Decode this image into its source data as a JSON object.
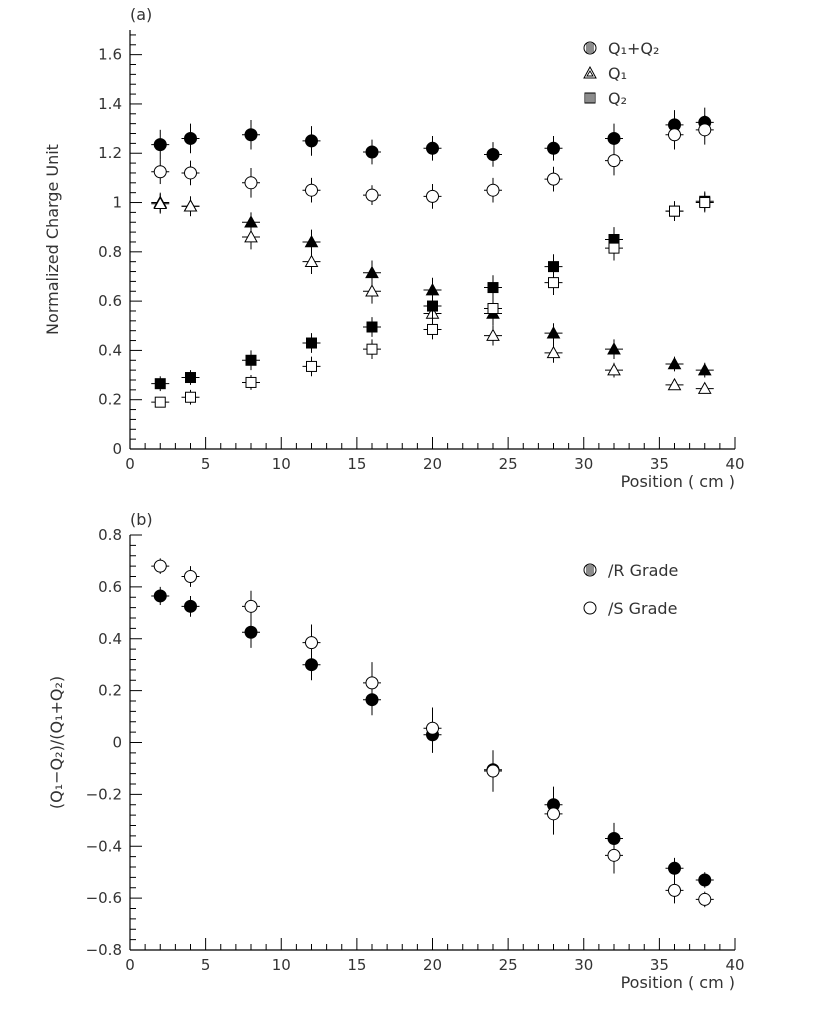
{
  "chart_data": [
    {
      "type": "scatter",
      "panel_label": "(a)",
      "xlabel": "Position ( cm )",
      "ylabel": "Normalized Charge Unit",
      "xlim": [
        0,
        40
      ],
      "ylim": [
        0,
        1.7
      ],
      "x_ticks": [
        0,
        5,
        10,
        15,
        20,
        25,
        30,
        35,
        40
      ],
      "y_ticks": [
        0,
        0.2,
        0.4,
        0.6,
        0.8,
        1,
        1.2,
        1.4,
        1.6
      ],
      "y_tick_labels": [
        "0",
        "0.2",
        "0.4",
        "0.6",
        "0.8",
        "1",
        "1.2",
        "1.4",
        "1.6"
      ],
      "x": [
        2,
        4,
        8,
        12,
        16,
        20,
        24,
        28,
        32,
        36,
        38
      ],
      "legend_position": "top-right",
      "legend": [
        {
          "label": "Q₁+Q₂",
          "marker": "circle"
        },
        {
          "label": "Q₁",
          "marker": "triangle"
        },
        {
          "label": "Q₂",
          "marker": "square"
        }
      ],
      "series": [
        {
          "marker": "circle",
          "filled": true,
          "values": [
            1.235,
            1.26,
            1.275,
            1.25,
            1.205,
            1.22,
            1.195,
            1.22,
            1.26,
            1.315,
            1.325
          ],
          "errors": [
            0.06,
            0.06,
            0.06,
            0.06,
            0.05,
            0.05,
            0.05,
            0.05,
            0.06,
            0.06,
            0.06
          ]
        },
        {
          "marker": "circle",
          "filled": false,
          "values": [
            1.125,
            1.12,
            1.08,
            1.05,
            1.03,
            1.025,
            1.05,
            1.095,
            1.17,
            1.275,
            1.295
          ],
          "errors": [
            0.05,
            0.05,
            0.06,
            0.05,
            0.04,
            0.05,
            0.05,
            0.05,
            0.06,
            0.06,
            0.06
          ]
        },
        {
          "marker": "triangle",
          "filled": true,
          "values": [
            1.0,
            0.985,
            0.92,
            0.84,
            0.715,
            0.645,
            0.55,
            0.47,
            0.405,
            0.345,
            0.32
          ],
          "errors": [
            0.04,
            0.04,
            0.04,
            0.05,
            0.05,
            0.05,
            0.05,
            0.04,
            0.04,
            0.03,
            0.03
          ]
        },
        {
          "marker": "triangle",
          "filled": false,
          "values": [
            0.995,
            0.985,
            0.86,
            0.76,
            0.64,
            0.55,
            0.46,
            0.39,
            0.32,
            0.26,
            0.245
          ],
          "errors": [
            0.04,
            0.04,
            0.05,
            0.05,
            0.05,
            0.04,
            0.04,
            0.04,
            0.03,
            0.02,
            0.02
          ]
        },
        {
          "marker": "square",
          "filled": true,
          "values": [
            0.265,
            0.29,
            0.36,
            0.43,
            0.495,
            0.58,
            0.655,
            0.74,
            0.85,
            0.965,
            1.005
          ],
          "errors": [
            0.03,
            0.03,
            0.04,
            0.04,
            0.04,
            0.05,
            0.05,
            0.05,
            0.05,
            0.04,
            0.04
          ]
        },
        {
          "marker": "square",
          "filled": false,
          "values": [
            0.19,
            0.21,
            0.27,
            0.335,
            0.405,
            0.485,
            0.57,
            0.675,
            0.815,
            0.965,
            1.0
          ],
          "errors": [
            0.02,
            0.03,
            0.03,
            0.04,
            0.04,
            0.04,
            0.05,
            0.05,
            0.05,
            0.04,
            0.04
          ]
        }
      ]
    },
    {
      "type": "scatter",
      "panel_label": "(b)",
      "xlabel": "Position ( cm )",
      "ylabel": "(Q₁−Q₂)/(Q₁+Q₂)",
      "xlim": [
        0,
        40
      ],
      "ylim": [
        -0.8,
        0.8
      ],
      "x_ticks": [
        0,
        5,
        10,
        15,
        20,
        25,
        30,
        35,
        40
      ],
      "y_ticks": [
        -0.8,
        -0.6,
        -0.4,
        -0.2,
        0,
        0.2,
        0.4,
        0.6,
        0.8
      ],
      "y_tick_labels": [
        "−0.8",
        "−0.6",
        "−0.4",
        "−0.2",
        "0",
        "0.2",
        "0.4",
        "0.6",
        "0.8"
      ],
      "x": [
        2,
        4,
        8,
        12,
        16,
        20,
        24,
        28,
        32,
        36,
        38
      ],
      "legend_position": "top-right",
      "legend": [
        {
          "label": "/R Grade",
          "marker": "circle"
        },
        {
          "label": "/S Grade",
          "marker": "circle-open"
        }
      ],
      "series": [
        {
          "marker": "circle",
          "filled": true,
          "values": [
            0.565,
            0.525,
            0.425,
            0.3,
            0.165,
            0.03,
            -0.105,
            -0.24,
            -0.37,
            -0.485,
            -0.53
          ],
          "errors": [
            0.035,
            0.04,
            0.06,
            0.06,
            0.06,
            0.07,
            0.07,
            0.07,
            0.06,
            0.04,
            0.03
          ]
        },
        {
          "marker": "circle",
          "filled": false,
          "values": [
            0.68,
            0.64,
            0.525,
            0.385,
            0.23,
            0.055,
            -0.11,
            -0.275,
            -0.435,
            -0.57,
            -0.605
          ],
          "errors": [
            0.03,
            0.04,
            0.06,
            0.07,
            0.08,
            0.08,
            0.08,
            0.08,
            0.07,
            0.05,
            0.03
          ]
        }
      ]
    }
  ]
}
